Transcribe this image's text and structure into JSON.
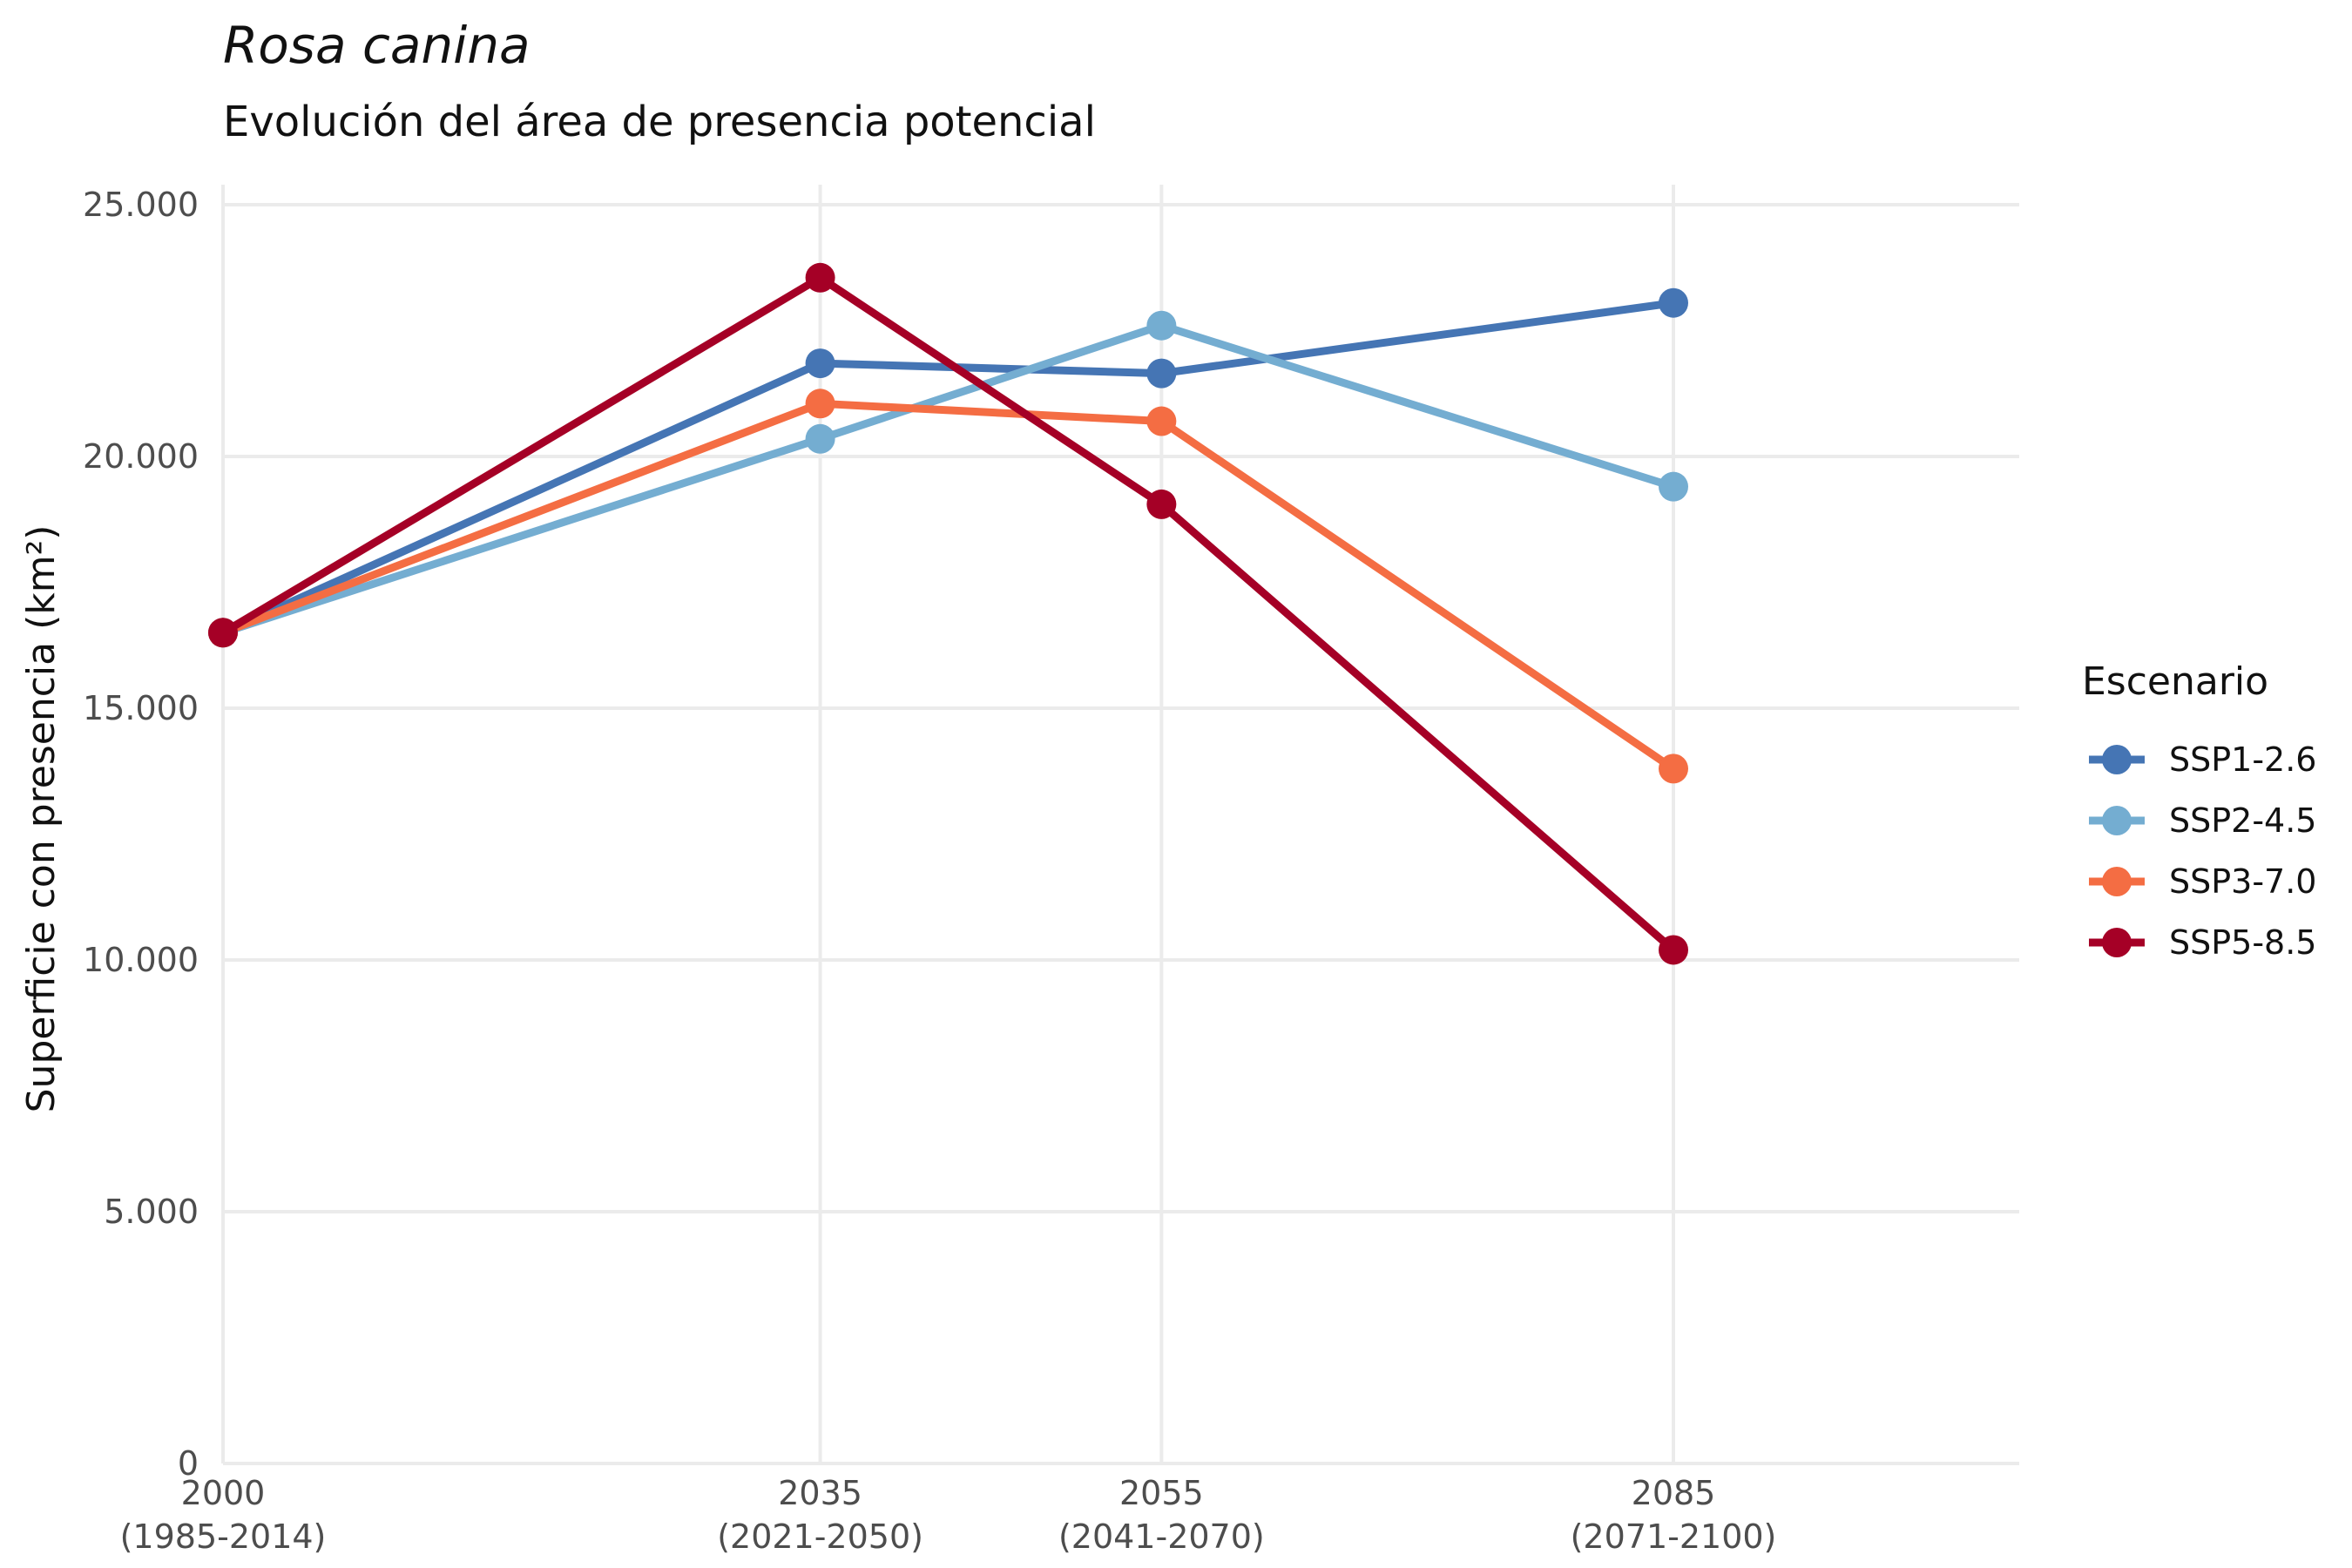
{
  "chart_data": {
    "type": "line",
    "title": "Rosa canina",
    "subtitle": "Evolución del área de presencia potencial",
    "ylabel": "Superficie con presencia (km²)",
    "xlabel": "",
    "x": [
      2000,
      2035,
      2055,
      2085
    ],
    "x_tick_labels": [
      [
        "2000",
        "(1985-2014)"
      ],
      [
        "2035",
        "(2021-2050)"
      ],
      [
        "2055",
        "(2041-2070)"
      ],
      [
        "2085",
        "(2071-2100)"
      ]
    ],
    "xlim": [
      1990,
      2088
    ],
    "ylim": [
      0,
      25000
    ],
    "y_ticks": [
      0,
      5000,
      10000,
      15000,
      20000,
      25000
    ],
    "y_tick_labels": [
      "0",
      "5.000",
      "10.000",
      "15.000",
      "20.000",
      "25.000"
    ],
    "grid": true,
    "legend": {
      "title": "Escenario",
      "position": "right"
    },
    "series": [
      {
        "name": "SSP1-2.6",
        "color": "#4575b4",
        "values": [
          16500,
          21850,
          21650,
          23050
        ]
      },
      {
        "name": "SSP2-4.5",
        "color": "#74add1",
        "values": [
          16500,
          20350,
          22600,
          19400
        ]
      },
      {
        "name": "SSP3-7.0",
        "color": "#f46d43",
        "values": [
          16500,
          21050,
          20700,
          13800
        ]
      },
      {
        "name": "SSP5-8.5",
        "color": "#a50026",
        "values": [
          16500,
          23550,
          19050,
          10200
        ]
      }
    ]
  }
}
